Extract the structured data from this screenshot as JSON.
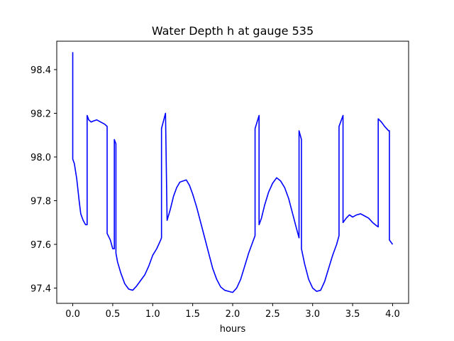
{
  "chart_data": {
    "type": "line",
    "title": "Water Depth h at gauge 535",
    "xlabel": "hours",
    "ylabel": "",
    "xlim": [
      -0.2,
      4.2
    ],
    "ylim": [
      97.33,
      98.53
    ],
    "x_ticks": [
      0.0,
      0.5,
      1.0,
      1.5,
      2.0,
      2.5,
      3.0,
      3.5,
      4.0
    ],
    "x_tick_labels": [
      "0.0",
      "0.5",
      "1.0",
      "1.5",
      "2.0",
      "2.5",
      "3.0",
      "3.5",
      "4.0"
    ],
    "y_ticks": [
      97.4,
      97.6,
      97.8,
      98.0,
      98.2,
      98.4
    ],
    "y_tick_labels": [
      "97.4",
      "97.6",
      "97.8",
      "98.0",
      "98.2",
      "98.4"
    ],
    "grid": false,
    "series": [
      {
        "color": "#0000ff",
        "x": [
          0.0,
          0.0,
          0.02,
          0.05,
          0.08,
          0.1,
          0.13,
          0.16,
          0.18,
          0.18,
          0.2,
          0.23,
          0.26,
          0.3,
          0.35,
          0.4,
          0.43,
          0.43,
          0.47,
          0.5,
          0.52,
          0.52,
          0.54,
          0.54,
          0.56,
          0.6,
          0.65,
          0.7,
          0.75,
          0.8,
          0.9,
          0.95,
          1.0,
          1.05,
          1.1,
          1.11,
          1.11,
          1.16,
          1.16,
          1.18,
          1.22,
          1.26,
          1.3,
          1.34,
          1.38,
          1.42,
          1.46,
          1.5,
          1.55,
          1.6,
          1.65,
          1.7,
          1.75,
          1.8,
          1.85,
          1.9,
          1.95,
          2.0,
          2.05,
          2.1,
          2.15,
          2.2,
          2.25,
          2.28,
          2.28,
          2.33,
          2.33,
          2.36,
          2.4,
          2.45,
          2.5,
          2.55,
          2.6,
          2.65,
          2.7,
          2.75,
          2.8,
          2.83,
          2.83,
          2.86,
          2.86,
          2.9,
          2.95,
          3.0,
          3.05,
          3.1,
          3.15,
          3.2,
          3.25,
          3.3,
          3.33,
          3.33,
          3.38,
          3.38,
          3.42,
          3.46,
          3.5,
          3.55,
          3.6,
          3.65,
          3.7,
          3.75,
          3.8,
          3.82,
          3.82,
          3.86,
          3.9,
          3.95,
          3.96,
          3.96,
          4.0
        ],
        "y": [
          98.48,
          97.99,
          97.97,
          97.9,
          97.8,
          97.74,
          97.71,
          97.69,
          97.69,
          98.19,
          98.17,
          98.16,
          98.165,
          98.17,
          98.16,
          98.15,
          98.14,
          97.65,
          97.62,
          97.58,
          97.58,
          98.08,
          98.06,
          97.56,
          97.52,
          97.47,
          97.42,
          97.395,
          97.39,
          97.41,
          97.46,
          97.5,
          97.55,
          97.58,
          97.62,
          97.63,
          98.13,
          98.2,
          98.2,
          97.71,
          97.76,
          97.82,
          97.86,
          97.885,
          97.89,
          97.895,
          97.87,
          97.83,
          97.77,
          97.7,
          97.63,
          97.56,
          97.49,
          97.44,
          97.405,
          97.39,
          97.385,
          97.38,
          97.4,
          97.44,
          97.5,
          97.56,
          97.61,
          97.64,
          98.13,
          98.19,
          97.69,
          97.72,
          97.78,
          97.84,
          97.88,
          97.905,
          97.89,
          97.86,
          97.81,
          97.74,
          97.67,
          97.63,
          98.12,
          98.08,
          97.58,
          97.51,
          97.44,
          97.4,
          97.385,
          97.39,
          97.43,
          97.49,
          97.55,
          97.6,
          97.64,
          98.14,
          98.19,
          97.7,
          97.72,
          97.735,
          97.725,
          97.735,
          97.74,
          97.73,
          97.72,
          97.7,
          97.685,
          97.68,
          98.175,
          98.16,
          98.14,
          98.12,
          98.12,
          97.62,
          97.6
        ]
      }
    ]
  }
}
